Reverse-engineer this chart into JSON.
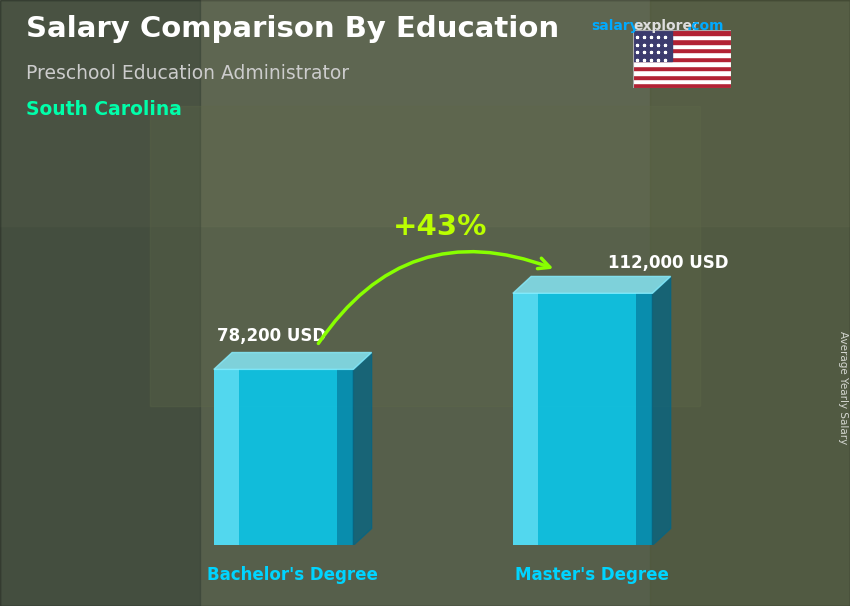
{
  "title": "Salary Comparison By Education",
  "subtitle": "Preschool Education Administrator",
  "location": "South Carolina",
  "categories": [
    "Bachelor's Degree",
    "Master's Degree"
  ],
  "values": [
    78200,
    112000
  ],
  "value_labels": [
    "78,200 USD",
    "112,000 USD"
  ],
  "bar_color_face": "#00d4ff",
  "bar_color_light": "#88eeff",
  "bar_color_dark": "#0099bb",
  "bar_color_side": "#006688",
  "pct_change": "+43%",
  "pct_color": "#bbff00",
  "arrow_color": "#88ff00",
  "ylabel": "Average Yearly Salary",
  "title_color": "#ffffff",
  "subtitle_color": "#cccccc",
  "location_color": "#00ffaa",
  "label_color": "#ffffff",
  "xlabel_color": "#00d4ff",
  "bg_colors": [
    "#6b7c6b",
    "#7a8c7a",
    "#556655"
  ],
  "overlay_alpha": 0.38,
  "ylim": [
    0,
    140000
  ],
  "site_salary_color": "#00aaff",
  "site_explorer_color": "#dddddd",
  "site_com_color": "#00aaff"
}
